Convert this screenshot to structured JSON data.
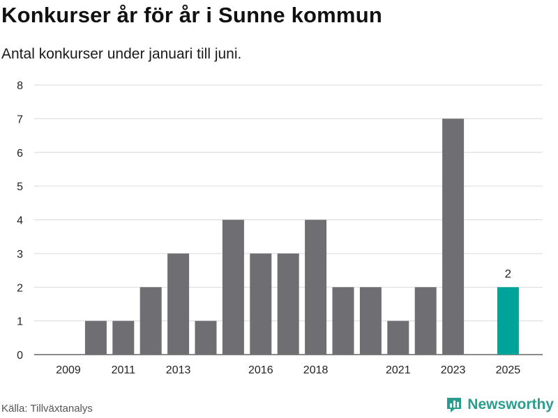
{
  "header": {
    "title": "Konkurser år för år i Sunne kommun",
    "subtitle": "Antal konkurser under januari till juni."
  },
  "footer": {
    "source": "Källa: Tillväxtanalys",
    "brand": "Newsworthy",
    "brand_icon": "bar-chart-logo-icon"
  },
  "colors": {
    "bar": "#6e6e73",
    "highlight": "#00a39a",
    "grid": "#d9d9d9",
    "brand": "#2a9d8f"
  },
  "chart_data": {
    "type": "bar",
    "categories": [
      "2009",
      "2010",
      "2011",
      "2012",
      "2013",
      "2014",
      "2015",
      "2016",
      "2017",
      "2018",
      "2019",
      "2020",
      "2021",
      "2022",
      "2023",
      "2024",
      "2025"
    ],
    "values": [
      0,
      1,
      1,
      2,
      3,
      1,
      4,
      3,
      3,
      4,
      2,
      2,
      1,
      2,
      7,
      0,
      2
    ],
    "x_tick_labels": [
      "2009",
      "2011",
      "2013",
      "2016",
      "2018",
      "2021",
      "2023",
      "2025"
    ],
    "y_ticks": [
      0,
      1,
      2,
      3,
      4,
      5,
      6,
      7,
      8
    ],
    "ylim": [
      0,
      8
    ],
    "highlight_category": "2025",
    "data_labels": [
      {
        "category": "2025",
        "text": "2"
      }
    ],
    "grid": true,
    "legend": "none",
    "title": "Konkurser år för år i Sunne kommun",
    "subtitle": "Antal konkurser under januari till juni.",
    "xlabel": "",
    "ylabel": ""
  }
}
